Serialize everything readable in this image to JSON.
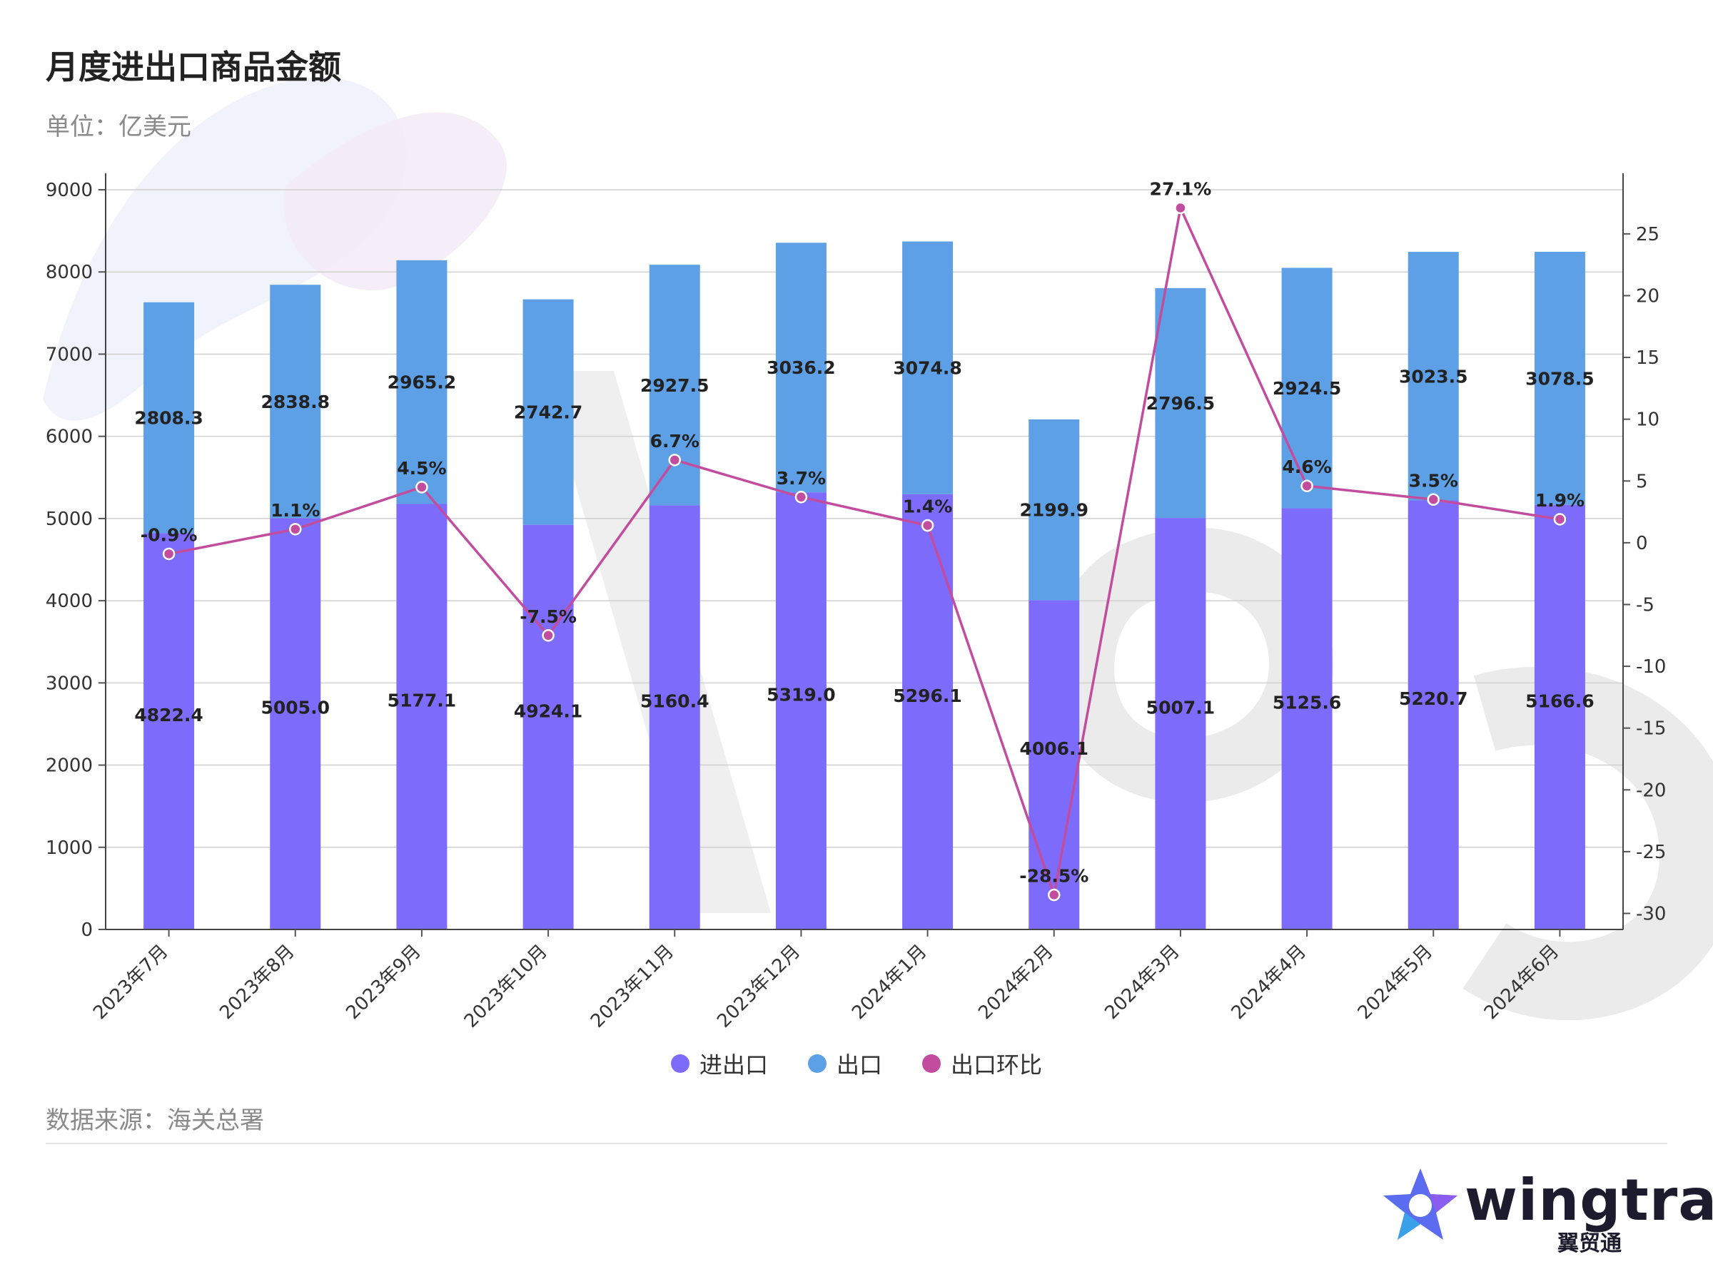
{
  "header": {
    "title": "月度进出口商品金额",
    "unit": "单位：亿美元"
  },
  "footer": {
    "source": "数据来源：海关总署"
  },
  "logo": {
    "name": "wingtra",
    "subtitle": "翼贸通"
  },
  "legend": [
    {
      "label": "进出口",
      "color": "#7d6cfb"
    },
    {
      "label": "出口",
      "color": "#5ea0e6"
    },
    {
      "label": "出口环比",
      "color": "#c24d9e"
    }
  ],
  "colors": {
    "import_export": "#7d6cfb",
    "export": "#5ea0e6",
    "export_mom": "#c24d9e",
    "grid": "#d0d0d0"
  },
  "chart_data": {
    "type": "bar",
    "title": "月度进出口商品金额",
    "ylabel": "单位：亿美元",
    "categories": [
      "2023年7月",
      "2023年8月",
      "2023年9月",
      "2023年10月",
      "2023年11月",
      "2023年12月",
      "2024年1月",
      "2024年2月",
      "2024年3月",
      "2024年4月",
      "2024年5月",
      "2024年6月"
    ],
    "series": [
      {
        "name": "进出口",
        "type": "bar",
        "axis": "left",
        "values": [
          4822.4,
          5005.0,
          5177.1,
          4924.1,
          5160.4,
          5319.0,
          5296.1,
          4006.1,
          5007.1,
          5125.6,
          5220.7,
          5166.6
        ],
        "labels": [
          "4822.4",
          "5005.0",
          "5177.1",
          "4924.1",
          "5160.4",
          "5319.0",
          "5296.1",
          "4006.1",
          "5007.1",
          "5125.6",
          "5220.7",
          "5166.6"
        ]
      },
      {
        "name": "出口",
        "type": "bar",
        "axis": "left",
        "stacked_on": "进出口",
        "values": [
          2808.3,
          2838.8,
          2965.2,
          2742.7,
          2927.5,
          3036.2,
          3074.8,
          2199.9,
          2796.5,
          2924.5,
          3023.5,
          3078.5
        ],
        "labels": [
          "2808.3",
          "2838.8",
          "2965.2",
          "2742.7",
          "2927.5",
          "3036.2",
          "3074.8",
          "2199.9",
          "2796.5",
          "2924.5",
          "3023.5",
          "3078.5"
        ]
      },
      {
        "name": "出口环比",
        "type": "line",
        "axis": "right",
        "unit": "%",
        "values": [
          -0.9,
          1.1,
          4.5,
          -7.5,
          6.7,
          3.7,
          1.4,
          -28.5,
          27.1,
          4.6,
          3.5,
          1.9
        ],
        "labels": [
          "-0.9%",
          "1.1%",
          "4.5%",
          "-7.5%",
          "6.7%",
          "3.7%",
          "1.4%",
          "-28.5%",
          "27.1%",
          "4.6%",
          "3.5%",
          "1.9%"
        ]
      }
    ],
    "ylim": [
      0,
      9000
    ],
    "yticks": [
      "0",
      "1000",
      "2000",
      "3000",
      "4000",
      "5000",
      "6000",
      "7000",
      "8000",
      "9000"
    ],
    "y2lim": [
      -31.3,
      29.9
    ],
    "y2ticks": [
      "25",
      "20",
      "15",
      "10",
      "5",
      "0",
      "-5",
      "-10",
      "-15",
      "-20",
      "-25",
      "-30"
    ],
    "grid": true,
    "legend_position": "bottom"
  }
}
